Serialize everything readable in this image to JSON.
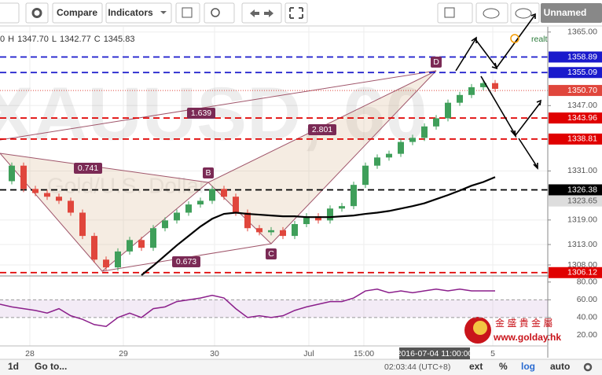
{
  "toolbar": {
    "compare": "Compare",
    "indicators": "Indicators",
    "layout_name": "Unnamed"
  },
  "header": [
    "0",
    "H",
    "1347.70",
    "L",
    "1342.77",
    "C",
    "1345.83"
  ],
  "realtime": "realtime",
  "watermark": {
    "symbol": "XAUUSD, 60",
    "description": "Gold/U.S. Dollar"
  },
  "logo": {
    "name": "金 盛 貴 金 屬",
    "url": "www.golday.hk"
  },
  "bottom_bar": {
    "range": "1d",
    "goto": "Go to...",
    "clock": "02:03:44 (UTC+8)",
    "ext": "ext",
    "percent": "%",
    "log": "log",
    "auto": "auto"
  },
  "chart_data": {
    "type": "candlestick",
    "up_color": "#3f9f5a",
    "down_color": "#e0463c",
    "closes": [
      1328.5,
      1332.3,
      1326.6,
      1325.6,
      1324.7,
      1323.7,
      1320.8,
      1315.1,
      1309.3,
      1307.4,
      1311.3,
      1314.1,
      1312.2,
      1317,
      1318.9,
      1320.8,
      1322.8,
      1323.7,
      1326.6,
      1324.7,
      1320.8,
      1317,
      1316,
      1316.5,
      1315.1,
      1318,
      1319.9,
      1318.9,
      1321.8,
      1322.4,
      1327.6,
      1332.3,
      1334.3,
      1335.2,
      1338.1,
      1339.1,
      1341.9,
      1343.9,
      1347.7,
      1349.6,
      1351.5,
      1352.5,
      1351.1
    ],
    "moving_average": {
      "color": "#000000",
      "values": [
        null,
        null,
        null,
        null,
        null,
        null,
        null,
        null,
        null,
        null,
        null,
        null,
        1305.5,
        1307.8,
        1310.3,
        1312.8,
        1315.1,
        1317.4,
        1319.3,
        1320.5,
        1320.8,
        1320.5,
        1320.3,
        1320.1,
        1319.9,
        1319.9,
        1319.7,
        1319.7,
        1319.7,
        1319.9,
        1320.1,
        1320.5,
        1320.8,
        1321.2,
        1321.8,
        1322.4,
        1323.1,
        1324.1,
        1325.1,
        1326.2,
        1327.4,
        1328.3,
        1329.5
      ]
    },
    "ylim": [
      1305.5,
      1366.3
    ],
    "yticks": [
      {
        "value": 1308,
        "label": "1308.00"
      },
      {
        "value": 1313,
        "label": "1313.00"
      },
      {
        "value": 1319,
        "label": "1319.00"
      },
      {
        "value": 1331,
        "label": "1331.00"
      },
      {
        "value": 1347,
        "label": "1347.00"
      },
      {
        "value": 1365,
        "label": "1365.00"
      }
    ],
    "levels": [
      {
        "value": 1358.89,
        "label": "1358.89",
        "color": "#1a1acc",
        "dash": "8,5"
      },
      {
        "value": 1355.09,
        "label": "1355.09",
        "color": "#1a1acc",
        "dash": "8,5"
      },
      {
        "value": 1350.7,
        "label": "1350.70",
        "color": "#e0463c",
        "dash": "1,2"
      },
      {
        "value": 1343.96,
        "label": "1343.96",
        "color": "#e00000",
        "dash": "8,5"
      },
      {
        "value": 1338.81,
        "label": "1338.81",
        "color": "#e00000",
        "dash": "8,5"
      },
      {
        "value": 1326.38,
        "label": "1326.38",
        "color": "#000000",
        "dash": "8,5"
      },
      {
        "value": 1306.12,
        "label": "1306.12",
        "color": "#e00000",
        "dash": "8,5"
      }
    ],
    "last_price_label": {
      "value": 1323.65,
      "label": "1323.65"
    },
    "pattern": {
      "points": [
        "B",
        "C",
        "D"
      ],
      "ratios": [
        "0.741",
        "1.639",
        "2.801",
        "0.673"
      ]
    },
    "x_labels": [
      "28",
      "29",
      "30",
      "Jul",
      "15:00",
      "5"
    ],
    "cursor_time": "2016-07-04 11:00:00",
    "rsi": {
      "color": "#8b1f8b",
      "ylim": [
        8,
        86
      ],
      "yticks": [
        {
          "value": 20,
          "label": "20.00"
        },
        {
          "value": 40,
          "label": "40.00"
        },
        {
          "value": 60,
          "label": "60.00"
        },
        {
          "value": 80,
          "label": "80.00"
        }
      ],
      "band": [
        40,
        60
      ],
      "values": [
        55,
        52,
        50,
        48,
        45,
        50,
        42,
        38,
        32,
        30,
        40,
        45,
        40,
        50,
        52,
        58,
        60,
        62,
        65,
        62,
        50,
        40,
        42,
        40,
        42,
        48,
        52,
        55,
        58,
        58,
        62,
        70,
        72,
        68,
        70,
        68,
        70,
        72,
        70,
        72,
        70,
        70,
        70
      ]
    }
  }
}
